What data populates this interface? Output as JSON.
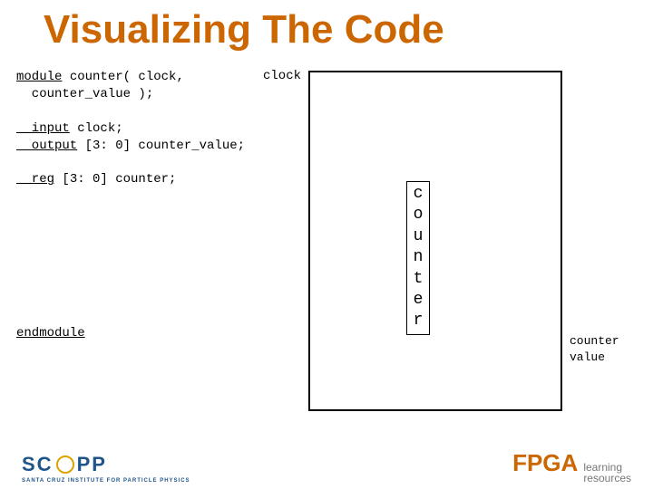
{
  "title": "Visualizing The Code",
  "code": {
    "l1a": "module",
    "l1b": " counter( clock,",
    "l2": "  counter_value );",
    "l3a": "  input",
    "l3b": " clock;",
    "l4a": "  output",
    "l4b": " [3: 0] counter_value;",
    "l5a": "  reg",
    "l5b": " [3: 0] counter;",
    "l6": "endmodule"
  },
  "labels": {
    "clock": "clock",
    "output1": "counter",
    "output2": "value"
  },
  "vertical": {
    "c1": "c",
    "c2": "o",
    "c3": "u",
    "c4": "n",
    "c5": "t",
    "c6": "e",
    "c7": "r"
  },
  "footer": {
    "scipp": "SC PP",
    "scipp_sub": "SANTA CRUZ INSTITUTE FOR PARTICLE PHYSICS",
    "fpga": "FPGA",
    "fpga_sub1": "learning",
    "fpga_sub2": "resources"
  },
  "colors": {
    "title": "#cc6600",
    "scipp": "#20558a",
    "fpga": "#cc6600"
  }
}
